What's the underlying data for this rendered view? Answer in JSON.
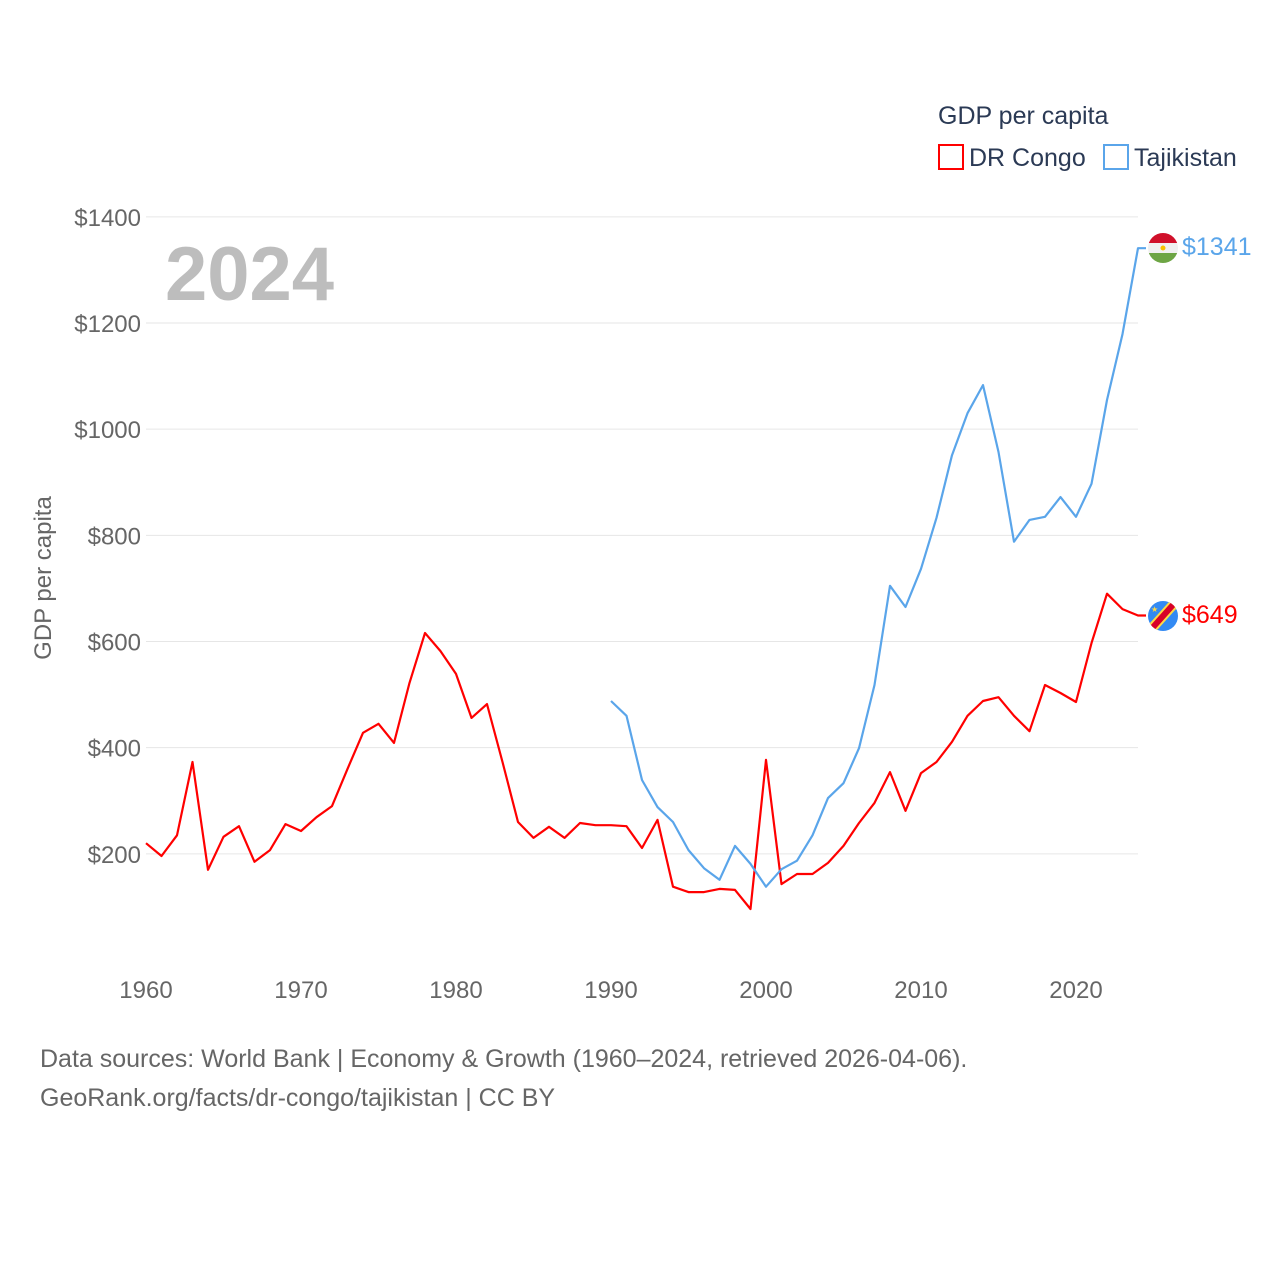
{
  "chart_data": {
    "type": "line",
    "title": "GDP per capita",
    "ylabel": "GDP per capita",
    "xlabel": "",
    "year_label": "2024",
    "xlim": [
      1960,
      2024
    ],
    "ylim": [
      0,
      1400
    ],
    "x_ticks": [
      1960,
      1970,
      1980,
      1990,
      2000,
      2010,
      2020
    ],
    "x_tick_labels": [
      "1960",
      "1970",
      "1980",
      "1990",
      "2000",
      "2010",
      "2020"
    ],
    "y_ticks": [
      200,
      400,
      600,
      800,
      1000,
      1200,
      1400
    ],
    "y_tick_labels": [
      "$200",
      "$400",
      "$600",
      "$800",
      "$1000",
      "$1200",
      "$1400"
    ],
    "grid": true,
    "legend_position": "top-right",
    "series": [
      {
        "name": "DR Congo",
        "color": "#ff0000",
        "end_label": "$649",
        "start_year": 1960,
        "values": [
          220,
          196,
          235,
          373,
          170,
          232,
          252,
          185,
          207,
          256,
          243,
          269,
          290,
          360,
          428,
          445,
          409,
          522,
          616,
          582,
          539,
          456,
          482,
          373,
          260,
          230,
          251,
          230,
          258,
          254,
          254,
          252,
          211,
          264,
          138,
          128,
          128,
          134,
          132,
          96,
          377,
          143,
          162,
          162,
          183,
          215,
          258,
          296,
          354,
          281,
          352,
          373,
          411,
          460,
          488,
          495,
          460,
          431,
          518,
          503,
          486,
          597,
          690,
          661,
          649
        ]
      },
      {
        "name": "Tajikistan",
        "color": "#5aa5ea",
        "end_label": "$1341",
        "start_year": 1990,
        "values": [
          488,
          460,
          339,
          288,
          260,
          207,
          173,
          151,
          215,
          181,
          138,
          171,
          187,
          235,
          305,
          333,
          399,
          518,
          705,
          665,
          737,
          833,
          951,
          1030,
          1083,
          957,
          788,
          829,
          835,
          872,
          835,
          897,
          1055,
          1179,
          1341
        ]
      }
    ]
  },
  "footer": {
    "line1": "Data sources: World Bank | Economy & Growth (1960–2024, retrieved 2026-04-06).",
    "line2": "GeoRank.org/facts/dr-congo/tajikistan | CC BY"
  }
}
